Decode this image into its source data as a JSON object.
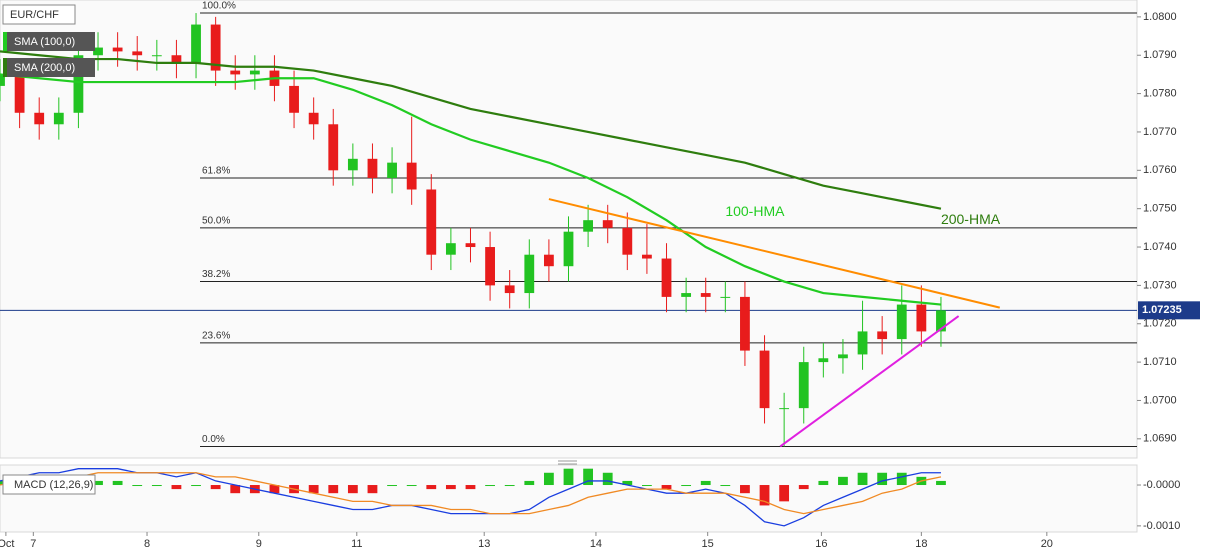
{
  "chart_data": {
    "type": "candlestick",
    "symbol": "EUR/CHF",
    "up_color": "#22c322",
    "down_color": "#e81c1c",
    "x_index": [
      0,
      1,
      2,
      3,
      4,
      5,
      6,
      7,
      8,
      9,
      10,
      11,
      12,
      13,
      14,
      15,
      16,
      17,
      18,
      19,
      20,
      21,
      22,
      23,
      24,
      25,
      26,
      27,
      28,
      29,
      30,
      31,
      32,
      33,
      34,
      35,
      36,
      37,
      38,
      39,
      40,
      41,
      42,
      43,
      44,
      45,
      46,
      47,
      48
    ],
    "open": [
      1.0782,
      1.0785,
      1.0775,
      1.0772,
      1.0775,
      1.079,
      1.0792,
      1.0791,
      1.079,
      1.079,
      1.0788,
      1.0798,
      1.0786,
      1.0785,
      1.0786,
      1.0782,
      1.0775,
      1.0772,
      1.076,
      1.0763,
      1.0758,
      1.0762,
      1.0755,
      1.0738,
      1.0741,
      1.074,
      1.073,
      1.0728,
      1.0738,
      1.0735,
      1.0744,
      1.0747,
      1.0745,
      1.0738,
      1.0737,
      1.0727,
      1.0728,
      1.0727,
      1.0727,
      1.0713,
      1.0698,
      1.0698,
      1.071,
      1.0711,
      1.0712,
      1.0718,
      1.0716,
      1.0725,
      1.0718
    ],
    "high": [
      1.0789,
      1.0789,
      1.0779,
      1.0779,
      1.0794,
      1.0796,
      1.0796,
      1.0795,
      1.0794,
      1.0794,
      1.0801,
      1.08,
      1.079,
      1.079,
      1.079,
      1.0786,
      1.0779,
      1.0776,
      1.0767,
      1.0767,
      1.0766,
      1.0774,
      1.0759,
      1.0745,
      1.0745,
      1.0744,
      1.0734,
      1.0742,
      1.0742,
      1.0748,
      1.0751,
      1.0751,
      1.0749,
      1.0746,
      1.0741,
      1.0732,
      1.0732,
      1.0731,
      1.0731,
      1.0717,
      1.0702,
      1.0714,
      1.0715,
      1.0716,
      1.0726,
      1.0722,
      1.073,
      1.073,
      1.0727
    ],
    "low": [
      1.0778,
      1.0771,
      1.0768,
      1.0768,
      1.0771,
      1.0786,
      1.0787,
      1.0786,
      1.0786,
      1.0784,
      1.0784,
      1.0782,
      1.0781,
      1.0781,
      1.0778,
      1.0771,
      1.0768,
      1.0756,
      1.0756,
      1.0754,
      1.0754,
      1.0751,
      1.0734,
      1.0734,
      1.0736,
      1.0726,
      1.0724,
      1.0724,
      1.0731,
      1.0731,
      1.074,
      1.0741,
      1.0734,
      1.0733,
      1.0723,
      1.0723,
      1.0723,
      1.0723,
      1.0709,
      1.0694,
      1.0688,
      1.0694,
      1.0706,
      1.0707,
      1.0708,
      1.0712,
      1.0712,
      1.0714,
      1.0714
    ],
    "close": [
      1.0785,
      1.0775,
      1.0772,
      1.0775,
      1.079,
      1.0792,
      1.0791,
      1.079,
      1.079,
      1.0788,
      1.0798,
      1.0786,
      1.0785,
      1.0786,
      1.0782,
      1.0775,
      1.0772,
      1.076,
      1.0763,
      1.0758,
      1.0762,
      1.0755,
      1.0738,
      1.0741,
      1.074,
      1.073,
      1.0728,
      1.0738,
      1.0735,
      1.0744,
      1.0747,
      1.0745,
      1.0738,
      1.0737,
      1.0727,
      1.0728,
      1.0727,
      1.0727,
      1.0713,
      1.0698,
      1.0698,
      1.071,
      1.0711,
      1.0712,
      1.0718,
      1.0716,
      1.0725,
      1.0718,
      1.07235
    ],
    "series": [
      {
        "name": "100-HMA",
        "legend": "SMA (100,0)",
        "color": "#22cc22",
        "x": [
          0,
          2,
          4,
          6,
          8,
          10,
          12,
          14,
          16,
          18,
          20,
          22,
          24,
          26,
          28,
          30,
          32,
          34,
          36,
          38,
          40,
          42,
          44,
          46,
          48
        ],
        "values": [
          1.0785,
          1.0784,
          1.0783,
          1.0783,
          1.0783,
          1.0783,
          1.0783,
          1.0784,
          1.0784,
          1.0781,
          1.0777,
          1.0772,
          1.0768,
          1.0765,
          1.0762,
          1.0758,
          1.0753,
          1.0747,
          1.074,
          1.0735,
          1.0731,
          1.0728,
          1.0727,
          1.0726,
          1.0725
        ],
        "label_at": [
          37,
          1.0749
        ]
      },
      {
        "name": "200-HMA",
        "legend": "SMA (200,0)",
        "color": "#2e7d0e",
        "x": [
          0,
          2,
          4,
          6,
          8,
          10,
          12,
          14,
          16,
          18,
          20,
          22,
          24,
          26,
          28,
          30,
          32,
          34,
          36,
          38,
          40,
          42,
          44,
          46,
          48
        ],
        "values": [
          1.0791,
          1.079,
          1.0789,
          1.0789,
          1.0788,
          1.0788,
          1.0787,
          1.0787,
          1.0786,
          1.0784,
          1.0782,
          1.0779,
          1.0776,
          1.0774,
          1.0772,
          1.077,
          1.0768,
          1.0766,
          1.0764,
          1.0762,
          1.0759,
          1.0756,
          1.0754,
          1.0752,
          1.075
        ],
        "label_at": [
          48,
          1.0747
        ]
      }
    ],
    "fib_levels": [
      {
        "label": "100.0%",
        "value": 1.0801
      },
      {
        "label": "61.8%",
        "value": 1.0758
      },
      {
        "label": "50.0%",
        "value": 1.0745
      },
      {
        "label": "38.2%",
        "value": 1.0731
      },
      {
        "label": "23.6%",
        "value": 1.0715
      },
      {
        "label": "0.0%",
        "value": 1.0688
      }
    ],
    "trendlines": [
      {
        "color": "#ff8c00",
        "x": [
          28,
          51
        ],
        "y": [
          1.07525,
          1.07242
        ]
      },
      {
        "color": "#e020e0",
        "x": [
          39.8,
          48.9
        ],
        "y": [
          1.0688,
          1.0722
        ]
      }
    ],
    "xlim": [
      0,
      58
    ],
    "xticks": [
      {
        "value": 0.3,
        "label": "Oct"
      },
      {
        "value": 1.7,
        "label": "7"
      },
      {
        "value": 7.5,
        "label": "8"
      },
      {
        "value": 13.2,
        "label": "9"
      },
      {
        "value": 18.2,
        "label": "11"
      },
      {
        "value": 24.7,
        "label": "13"
      },
      {
        "value": 30.4,
        "label": "14"
      },
      {
        "value": 36.1,
        "label": "15"
      },
      {
        "value": 41.9,
        "label": "16"
      },
      {
        "value": 47,
        "label": "18"
      },
      {
        "value": 53.4,
        "label": "20"
      }
    ],
    "ylim": [
      1.0685,
      1.08044
    ],
    "yticks": [
      {
        "value": 1.069,
        "label": "1.0690"
      },
      {
        "value": 1.07,
        "label": "1.0700"
      },
      {
        "value": 1.071,
        "label": "1.0710"
      },
      {
        "value": 1.072,
        "label": "1.0720"
      },
      {
        "value": 1.073,
        "label": "1.0730"
      },
      {
        "value": 1.074,
        "label": "1.0740"
      },
      {
        "value": 1.075,
        "label": "1.0750"
      },
      {
        "value": 1.076,
        "label": "1.0760"
      },
      {
        "value": 1.077,
        "label": "1.0770"
      },
      {
        "value": 1.078,
        "label": "1.0780"
      },
      {
        "value": 1.079,
        "label": "1.0790"
      },
      {
        "value": 1.08,
        "label": "1.0800"
      }
    ],
    "macd": {
      "name": "MACD (12,26,9)",
      "macd_color": "#1a3ee0",
      "signal_color": "#f08a24",
      "ylim": [
        -0.00115,
        0.00049
      ],
      "yticks": [
        {
          "value": 0,
          "label": "-0.0000"
        },
        {
          "value": -0.001,
          "label": "-0.0010"
        }
      ],
      "macd": [
        0.0001,
        0.0002,
        0.0003,
        0.0003,
        0.0004,
        0.0004,
        0.0004,
        0.0003,
        0.0003,
        0.0002,
        0.0003,
        0.0001,
        0,
        -0.0001,
        -0.0002,
        -0.0003,
        -0.0004,
        -0.0005,
        -0.0006,
        -0.0006,
        -0.0005,
        -0.0005,
        -0.0006,
        -0.0007,
        -0.0007,
        -0.0007,
        -0.0007,
        -0.0006,
        -0.0003,
        -0.0001,
        0.0001,
        0.0001,
        0,
        -0.0001,
        -0.0002,
        -0.0002,
        -0.0001,
        -0.0002,
        -0.0005,
        -0.0009,
        -0.001,
        -0.0008,
        -0.0005,
        -0.0003,
        -0.0001,
        0.0001,
        0.0002,
        0.0003,
        0.0003
      ],
      "signal": [
        0,
        0.0001,
        0.0001,
        0.0002,
        0.0002,
        0.0003,
        0.0003,
        0.0003,
        0.0003,
        0.0003,
        0.0003,
        0.0002,
        0.0002,
        0.0001,
        0,
        -0.0001,
        -0.0002,
        -0.0003,
        -0.0004,
        -0.0004,
        -0.0005,
        -0.0005,
        -0.0005,
        -0.0006,
        -0.0006,
        -0.0007,
        -0.0007,
        -0.0007,
        -0.0006,
        -0.0005,
        -0.0003,
        -0.0002,
        -0.0001,
        -0.0001,
        -0.0001,
        -0.0002,
        -0.0002,
        -0.0002,
        -0.0003,
        -0.0004,
        -0.0006,
        -0.0007,
        -0.0006,
        -0.0005,
        -0.0004,
        -0.0002,
        -0.0001,
        0.0001,
        0.0002
      ],
      "histogram": [
        0.0001,
        0.0001,
        0.0002,
        0.0001,
        0.0002,
        0.0001,
        0.0001,
        0,
        0,
        -0.0001,
        0,
        -0.0001,
        -0.0002,
        -0.0002,
        -0.0002,
        -0.0002,
        -0.0002,
        -0.0002,
        -0.0002,
        -0.0002,
        0,
        0,
        -0.0001,
        -0.0001,
        -0.0001,
        0,
        0,
        0.0001,
        0.0003,
        0.0004,
        0.0004,
        0.0003,
        0.0001,
        0,
        -0.0001,
        0,
        0.0001,
        0,
        -0.0002,
        -0.0005,
        -0.0004,
        -0.0001,
        0.0001,
        0.0002,
        0.0003,
        0.0003,
        0.0003,
        0.0002,
        0.0001
      ]
    }
  }
}
